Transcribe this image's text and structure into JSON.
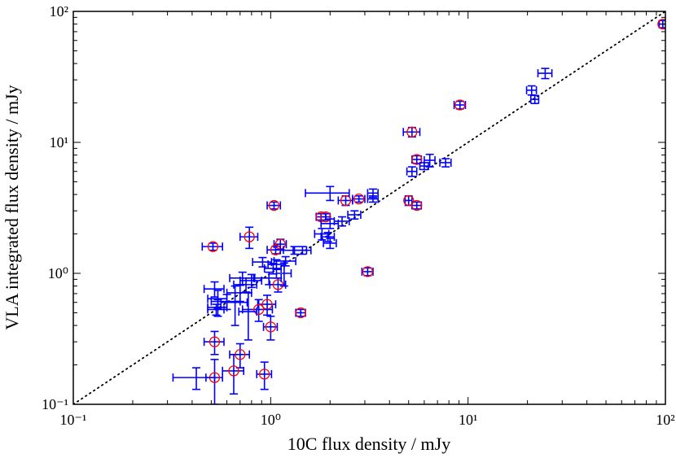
{
  "chart_data": {
    "type": "scatter",
    "xlabel": "10C flux density / mJy",
    "ylabel": "VLA integrated flux density / mJy",
    "log_x": true,
    "log_y": true,
    "xlim": [
      0.1,
      100
    ],
    "ylim": [
      0.1,
      100
    ],
    "xticks": [
      {
        "value": 0.1,
        "label": "10⁻¹"
      },
      {
        "value": 1,
        "label": "10⁰"
      },
      {
        "value": 10,
        "label": "10¹"
      },
      {
        "value": 100,
        "label": "10²"
      }
    ],
    "yticks": [
      {
        "value": 0.1,
        "label": "10⁻¹"
      },
      {
        "value": 1,
        "label": "10⁰"
      },
      {
        "value": 10,
        "label": "10¹"
      },
      {
        "value": 100,
        "label": "10²"
      }
    ],
    "reference_line": "dotted",
    "series": [
      {
        "color": "#0000ff",
        "circle_color": "#ff0000",
        "x": [
          97,
          9.1,
          5.2,
          5.5,
          5.0,
          5.5,
          3.1,
          2.4,
          2.8,
          1.8,
          1.9,
          1.04,
          0.51,
          0.78,
          1.12,
          1.06,
          1.09,
          0.96,
          0.87,
          1.0,
          0.52,
          0.7,
          0.65,
          0.52,
          0.93,
          1.42
        ],
        "y": [
          80,
          19.3,
          12,
          7.4,
          3.6,
          3.3,
          1.03,
          3.6,
          3.7,
          2.7,
          2.7,
          3.3,
          1.6,
          1.9,
          1.67,
          1.51,
          0.82,
          0.58,
          0.53,
          0.39,
          0.3,
          0.24,
          0.18,
          0.16,
          0.17,
          0.5
        ],
        "xerr": [
          4,
          0.6,
          0.5,
          0.3,
          0.2,
          0.3,
          0.2,
          0.2,
          0.2,
          0.1,
          0.1,
          0.08,
          0.06,
          0.08,
          0.08,
          0.1,
          0.1,
          0.1,
          0.15,
          0.08,
          0.06,
          0.08,
          0.08,
          0.05,
          0.08,
          0.08
        ],
        "yerr": [
          5,
          1.3,
          1.0,
          0.5,
          0.3,
          0.2,
          0.07,
          0.3,
          0.2,
          0.15,
          0.15,
          0.2,
          0.1,
          0.35,
          0.15,
          0.1,
          0.1,
          0.1,
          0.1,
          0.08,
          0.06,
          0.05,
          0.06,
          0.06,
          0.04,
          0.03
        ]
      },
      {
        "color": "#0000ff",
        "x": [
          24.6,
          21,
          21.8,
          7.7,
          6.4,
          6.0,
          5.2,
          2.0,
          3.3,
          3.3,
          2.66,
          2.3,
          2.0,
          1.82,
          1.95,
          2.0,
          1.32,
          1.45,
          1.19,
          0.91,
          1.03,
          1.17,
          0.98,
          0.8,
          0.75,
          0.7,
          0.52,
          0.54,
          0.6,
          0.54,
          0.66,
          0.77,
          0.42,
          0.53,
          0.72,
          1.07
        ],
        "y": [
          33.7,
          25,
          21.3,
          7,
          7.3,
          6.6,
          6.0,
          4.1,
          4.1,
          3.7,
          2.8,
          2.5,
          2.4,
          2.0,
          1.9,
          1.7,
          1.5,
          1.5,
          1.24,
          1.22,
          1.09,
          1.0,
          0.92,
          0.88,
          0.82,
          0.71,
          0.76,
          0.64,
          0.61,
          0.55,
          0.6,
          0.51,
          0.16,
          0.53,
          0.92,
          1.17
        ],
        "xerr": [
          2,
          1.2,
          1,
          0.5,
          0.4,
          0.3,
          0.3,
          0.5,
          0.2,
          0.2,
          0.2,
          0.2,
          0.2,
          0.15,
          0.15,
          0.15,
          0.2,
          0.15,
          0.15,
          0.1,
          0.1,
          0.1,
          0.15,
          0.1,
          0.1,
          0.1,
          0.06,
          0.06,
          0.1,
          0.06,
          0.1,
          0.08,
          0.1,
          0.05,
          0.1,
          0.1
        ],
        "yerr": [
          3,
          2,
          1.5,
          0.5,
          0.8,
          0.4,
          0.5,
          0.5,
          0.3,
          0.2,
          0.2,
          0.2,
          0.2,
          0.2,
          0.15,
          0.15,
          0.1,
          0.1,
          0.1,
          0.1,
          0.1,
          0.2,
          0.1,
          0.1,
          0.1,
          0.1,
          0.1,
          0.1,
          0.08,
          0.08,
          0.2,
          0.2,
          0.03,
          0.05,
          0.1,
          0.1
        ]
      }
    ]
  }
}
